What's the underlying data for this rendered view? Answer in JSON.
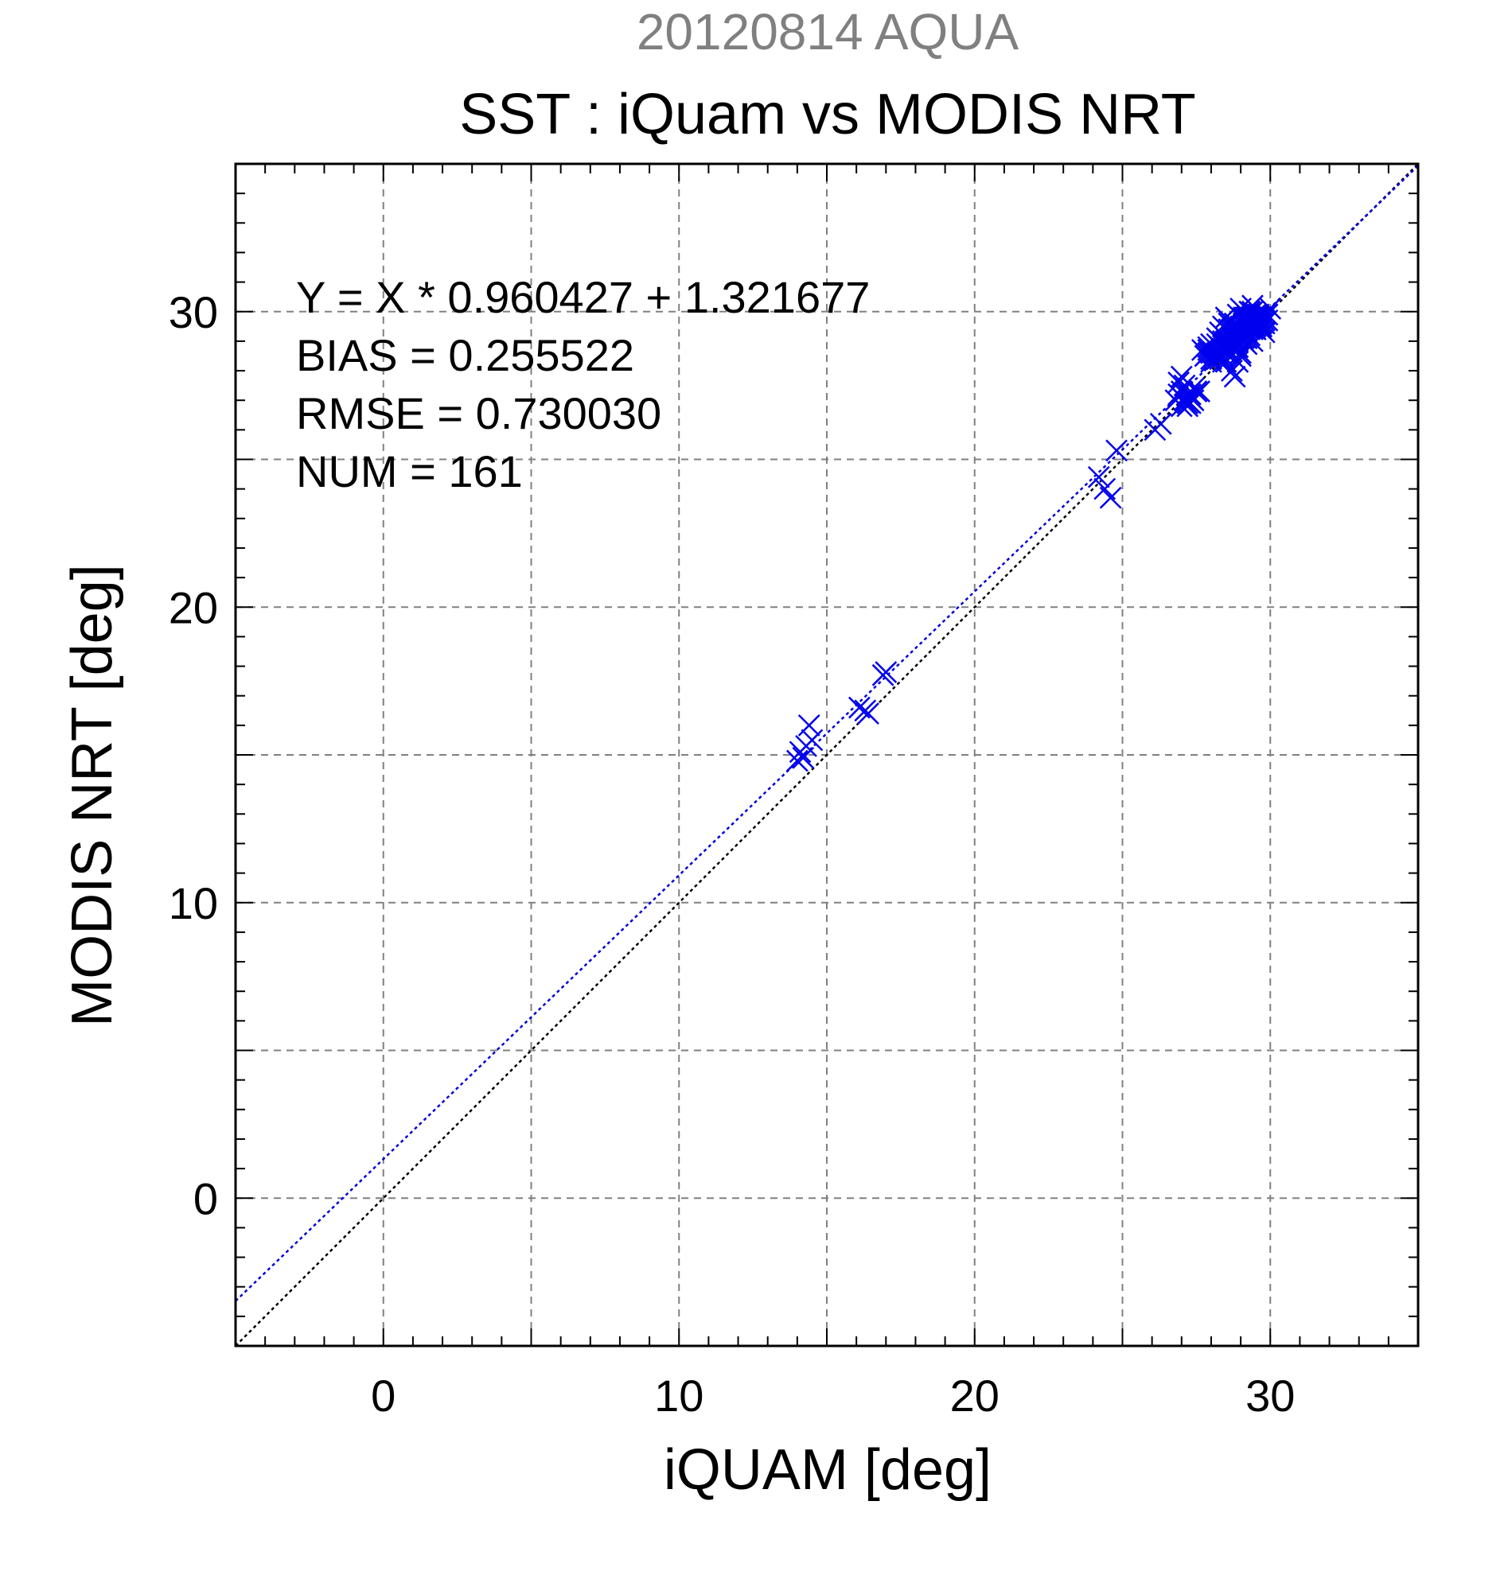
{
  "chart_data": {
    "type": "scatter",
    "supertitle": "20120814 AQUA",
    "title": "SST : iQuam vs MODIS NRT",
    "xlabel": "iQUAM [deg]",
    "ylabel": "MODIS NRT [deg]",
    "xlim": [
      -5,
      35
    ],
    "ylim": [
      -5,
      35
    ],
    "xticks": [
      0,
      10,
      20,
      30
    ],
    "yticks": [
      0,
      10,
      20,
      30
    ],
    "grid": true,
    "stats_lines": [
      "Y = X * 0.960427 + 1.321677",
      "BIAS = 0.255522",
      "RMSE = 0.730030",
      "NUM = 161"
    ],
    "fit_line": {
      "slope": 0.960427,
      "intercept": 1.321677
    },
    "reference_line": {
      "slope": 1,
      "intercept": 0
    },
    "colors": {
      "points": "#0000ee",
      "fit_line": "#0000dd",
      "reference_line": "#000000",
      "supertitle": "#808080",
      "grid": "#808080"
    },
    "series": [
      {
        "marker": "x",
        "x": [
          14.0,
          14.1,
          14.3,
          14.5,
          14.4,
          14.2,
          16.1,
          16.3,
          16.4,
          16.9,
          17.0,
          24.2,
          24.4,
          24.6,
          24.8,
          26.1,
          26.3,
          26.8,
          26.9,
          27.0,
          27.1,
          27.2,
          27.3,
          27.4,
          27.5,
          26.9,
          27.0,
          27.1,
          27.2,
          27.3,
          27.4,
          27.0,
          27.1,
          27.2,
          27.3,
          27.6,
          27.8,
          27.9,
          28.0,
          28.1,
          28.2,
          28.3,
          28.4,
          28.5,
          27.9,
          28.0,
          28.1,
          28.2,
          28.3,
          28.4,
          28.5,
          28.6,
          28.2,
          28.3,
          28.4,
          28.5,
          28.6,
          28.7,
          28.3,
          28.4,
          28.5,
          28.6,
          28.7,
          28.8,
          28.9,
          29.0,
          29.1,
          29.2,
          29.3,
          28.8,
          28.9,
          29.0,
          29.1,
          29.2,
          29.3,
          29.4,
          29.5,
          29.6,
          29.0,
          29.1,
          29.2,
          29.3,
          29.4,
          29.5,
          29.6,
          29.7,
          29.8,
          29.2,
          29.3,
          29.4,
          29.5,
          29.6,
          29.7,
          29.8,
          29.9,
          30.0,
          29.4,
          29.5,
          29.6,
          29.7,
          29.8,
          29.3,
          29.4,
          29.5,
          29.6,
          29.7,
          28.7,
          28.8,
          28.9,
          29.0,
          28.6,
          28.7,
          28.8,
          28.9,
          28.9,
          29.0,
          29.1,
          29.2,
          29.3,
          29.4,
          29.5,
          29.6,
          29.1,
          29.2,
          29.3,
          29.4,
          29.5,
          29.6,
          28.0,
          28.1,
          28.2,
          27.7,
          27.8,
          27.9,
          28.0,
          28.4,
          28.5,
          28.6,
          28.7,
          28.8,
          28.9,
          28.6,
          28.7,
          28.8,
          29.0,
          29.1,
          29.2,
          29.3,
          29.4,
          29.5,
          29.6,
          29.7,
          29.8,
          29.9,
          28.9,
          29.0,
          29.1,
          28.5,
          28.6
        ],
        "y": [
          14.8,
          15.1,
          15.3,
          15.5,
          16.0,
          14.9,
          16.6,
          16.5,
          16.4,
          17.7,
          17.8,
          24.4,
          24.0,
          23.7,
          25.3,
          26.0,
          26.2,
          27.0,
          27.2,
          27.3,
          27.0,
          26.8,
          27.1,
          27.4,
          27.3,
          27.6,
          27.8,
          27.5,
          26.9,
          27.2,
          27.0,
          26.8,
          27.0,
          27.2,
          26.9,
          27.3,
          28.5,
          28.7,
          28.4,
          28.6,
          28.9,
          28.8,
          28.5,
          28.7,
          28.6,
          28.9,
          28.5,
          28.6,
          28.8,
          29.0,
          28.7,
          28.9,
          29.1,
          29.3,
          29.2,
          29.0,
          29.4,
          29.1,
          28.4,
          28.3,
          28.6,
          29.0,
          29.4,
          29.6,
          29.2,
          29.5,
          29.7,
          29.8,
          29.6,
          29.0,
          29.3,
          29.4,
          29.6,
          29.8,
          30.0,
          29.7,
          29.5,
          29.9,
          29.2,
          29.5,
          29.3,
          29.7,
          29.4,
          29.6,
          29.8,
          29.5,
          29.7,
          29.1,
          29.4,
          29.5,
          29.8,
          29.6,
          29.4,
          29.9,
          29.7,
          30.1,
          30.0,
          29.8,
          29.5,
          29.6,
          29.3,
          29.2,
          29.0,
          29.4,
          29.6,
          29.5,
          28.0,
          27.8,
          28.3,
          28.5,
          28.9,
          29.1,
          28.8,
          29.0,
          29.9,
          30.1,
          29.8,
          29.6,
          30.0,
          30.2,
          29.9,
          29.7,
          29.6,
          29.9,
          29.8,
          29.5,
          29.7,
          29.9,
          28.3,
          28.6,
          28.4,
          28.7,
          28.5,
          28.8,
          28.6,
          29.5,
          29.8,
          29.6,
          29.2,
          29.4,
          29.1,
          28.9,
          29.2,
          29.5,
          29.3,
          29.1,
          28.9,
          29.6,
          29.8,
          29.4,
          29.7,
          29.5,
          29.6,
          29.9,
          28.8,
          28.6,
          29.0,
          28.3,
          28.7
        ]
      }
    ]
  }
}
